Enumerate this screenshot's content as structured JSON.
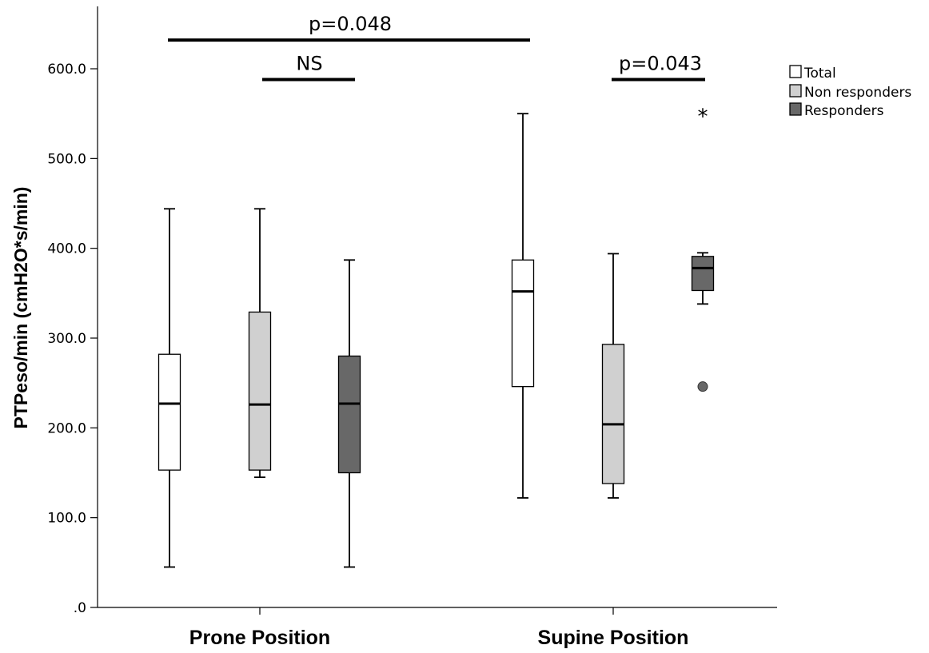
{
  "chart_data": {
    "type": "boxplot",
    "ylabel": "PTPeso/min (cmH2O*s/min)",
    "ylim": [
      0,
      600
    ],
    "y_ticks": [
      ".0",
      "100.0",
      "200.0",
      "300.0",
      "400.0",
      "500.0",
      "600.0"
    ],
    "categories": [
      "Prone Position",
      "Supine Position"
    ],
    "legend": {
      "position": "top-right",
      "entries": [
        {
          "name": "Total",
          "color": "#ffffff"
        },
        {
          "name": "Non responders",
          "color": "#d0d0d0"
        },
        {
          "name": "Responders",
          "color": "#686868"
        }
      ]
    },
    "series": [
      {
        "name": "Total",
        "color": "#ffffff",
        "boxes": [
          {
            "category": "Prone Position",
            "min": 45,
            "q1": 153,
            "median": 227,
            "q3": 282,
            "max": 444,
            "outliers": [],
            "extremes": []
          },
          {
            "category": "Supine Position",
            "min": 122,
            "q1": 246,
            "median": 352,
            "q3": 387,
            "max": 550,
            "outliers": [],
            "extremes": []
          }
        ]
      },
      {
        "name": "Non responders",
        "color": "#d0d0d0",
        "boxes": [
          {
            "category": "Prone Position",
            "min": 145,
            "q1": 153,
            "median": 226,
            "q3": 329,
            "max": 444,
            "outliers": [],
            "extremes": []
          },
          {
            "category": "Supine Position",
            "min": 122,
            "q1": 138,
            "median": 204,
            "q3": 293,
            "max": 394,
            "outliers": [],
            "extremes": []
          }
        ]
      },
      {
        "name": "Responders",
        "color": "#686868",
        "boxes": [
          {
            "category": "Prone Position",
            "min": 45,
            "q1": 150,
            "median": 227,
            "q3": 280,
            "max": 387,
            "outliers": [],
            "extremes": []
          },
          {
            "category": "Supine Position",
            "min": 338,
            "q1": 353,
            "median": 378,
            "q3": 391,
            "max": 395,
            "outliers": [
              246
            ],
            "extremes": [
              549
            ]
          }
        ]
      }
    ],
    "annotations": [
      {
        "text": "p=0.048",
        "value": 632
      },
      {
        "text": "NS",
        "value": 588
      },
      {
        "text": "p=0.043",
        "value": 588
      }
    ]
  }
}
